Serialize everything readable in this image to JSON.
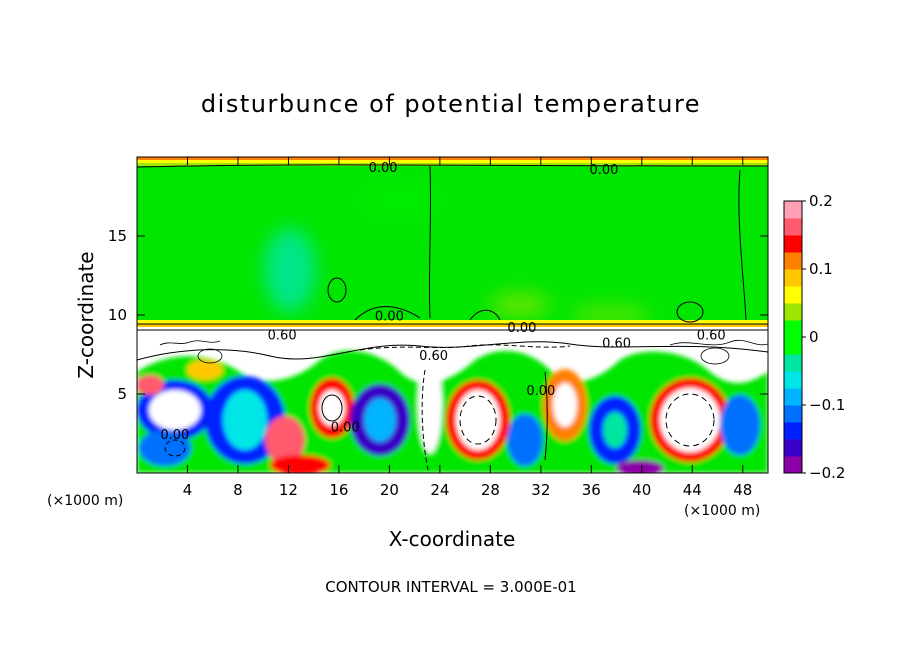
{
  "chart_data": {
    "type": "heatmap",
    "title": "disturbunce of potential temperature",
    "xlabel": "X-coordinate",
    "ylabel": "Z-coordinate",
    "x_unit": "(×1000 m)",
    "x_unit_right": "(×1000 m)",
    "x_ticks": [
      4,
      8,
      12,
      16,
      20,
      24,
      28,
      32,
      36,
      40,
      44,
      48
    ],
    "y_ticks": [
      5,
      10,
      15
    ],
    "xlim": [
      0,
      50
    ],
    "ylim": [
      0,
      20
    ],
    "colorbar": {
      "range": [
        -0.2,
        0.2
      ],
      "ticks": [
        {
          "value": 0.2,
          "label": "0.2"
        },
        {
          "value": 0.1,
          "label": "0.1"
        },
        {
          "value": 0,
          "label": "0"
        },
        {
          "value": -0.1,
          "label": "−0.1"
        },
        {
          "value": -0.2,
          "label": "−0.2"
        }
      ],
      "colors": [
        "#8c00a8",
        "#3a00c8",
        "#0020ff",
        "#0070ff",
        "#00b4ff",
        "#00e6e6",
        "#00e6a0",
        "#00ff00",
        "#00ff00",
        "#a0e600",
        "#ffff00",
        "#ffc800",
        "#ff8000",
        "#ff0000",
        "#ff5a6e",
        "#ffa0b4"
      ]
    },
    "contour_labels": [
      {
        "text": "0.00",
        "x": 19.5,
        "z": 19.1
      },
      {
        "text": "0.00",
        "x": 37.0,
        "z": 19.0
      },
      {
        "text": "0.00",
        "x": 20.0,
        "z": 9.7
      },
      {
        "text": "0.60",
        "x": 11.5,
        "z": 8.5
      },
      {
        "text": "0.60",
        "x": 23.5,
        "z": 7.2
      },
      {
        "text": "0.00",
        "x": 30.5,
        "z": 9.0
      },
      {
        "text": "0.60",
        "x": 38.0,
        "z": 8.0
      },
      {
        "text": "0.60",
        "x": 45.5,
        "z": 8.5
      },
      {
        "text": "0.00",
        "x": 32.0,
        "z": 5.0
      },
      {
        "text": "0.00",
        "x": 16.5,
        "z": 2.7
      },
      {
        "text": "0.00",
        "x": 3.0,
        "z": 2.2
      }
    ],
    "footer": "CONTOUR INTERVAL = 3.000E-01"
  }
}
